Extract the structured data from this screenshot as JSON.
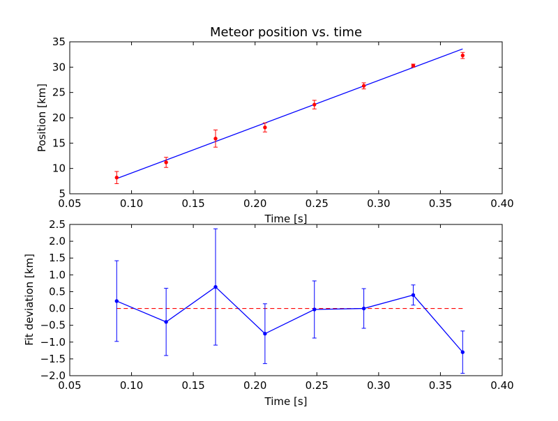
{
  "chart_data": [
    {
      "type": "scatter",
      "title": "Meteor position vs. time",
      "xlabel": "Time [s]",
      "ylabel": "Position [km]",
      "xlim": [
        0.05,
        0.4
      ],
      "ylim": [
        5,
        35
      ],
      "xticks": [
        0.05,
        0.1,
        0.15,
        0.2,
        0.25,
        0.3,
        0.35,
        0.4
      ],
      "xtick_labels": [
        "0.05",
        "0.10",
        "0.15",
        "0.20",
        "0.25",
        "0.30",
        "0.35",
        "0.40"
      ],
      "yticks": [
        5,
        10,
        15,
        20,
        25,
        30,
        35
      ],
      "ytick_labels": [
        "5",
        "10",
        "15",
        "20",
        "25",
        "30",
        "35"
      ],
      "grid": false,
      "points": {
        "color": "#ff0000",
        "x": [
          0.088,
          0.128,
          0.168,
          0.208,
          0.248,
          0.288,
          0.328,
          0.368
        ],
        "y": [
          8.2,
          11.2,
          15.9,
          18.1,
          22.6,
          26.3,
          30.3,
          32.3
        ],
        "yerr": [
          1.2,
          1.0,
          1.7,
          0.9,
          0.85,
          0.6,
          0.3,
          0.6
        ]
      },
      "fit_line": {
        "color": "#0000ff",
        "x": [
          0.088,
          0.368
        ],
        "y": [
          8.0,
          33.6
        ]
      }
    },
    {
      "type": "line",
      "title": "",
      "xlabel": "Time [s]",
      "ylabel": "Fit deviation [km]",
      "xlim": [
        0.05,
        0.4
      ],
      "ylim": [
        -2.0,
        2.5
      ],
      "xticks": [
        0.05,
        0.1,
        0.15,
        0.2,
        0.25,
        0.3,
        0.35,
        0.4
      ],
      "xtick_labels": [
        "0.05",
        "0.10",
        "0.15",
        "0.20",
        "0.25",
        "0.30",
        "0.35",
        "0.40"
      ],
      "yticks": [
        -2.0,
        -1.5,
        -1.0,
        -0.5,
        0.0,
        0.5,
        1.0,
        1.5,
        2.0,
        2.5
      ],
      "ytick_labels": [
        "−2.0",
        "−1.5",
        "−1.0",
        "−0.5",
        "0.0",
        "0.5",
        "1.0",
        "1.5",
        "2.0",
        "2.5"
      ],
      "grid": false,
      "series": {
        "color": "#0000ff",
        "x": [
          0.088,
          0.128,
          0.168,
          0.208,
          0.248,
          0.288,
          0.328,
          0.368
        ],
        "y": [
          0.22,
          -0.4,
          0.64,
          -0.75,
          -0.03,
          0.0,
          0.4,
          -1.3
        ],
        "yerr": [
          1.2,
          1.0,
          1.73,
          0.89,
          0.85,
          0.59,
          0.3,
          0.63
        ]
      },
      "zero_line": {
        "color": "#ff0000",
        "x": [
          0.088,
          0.368
        ],
        "y": [
          0.0,
          0.0
        ]
      }
    }
  ]
}
